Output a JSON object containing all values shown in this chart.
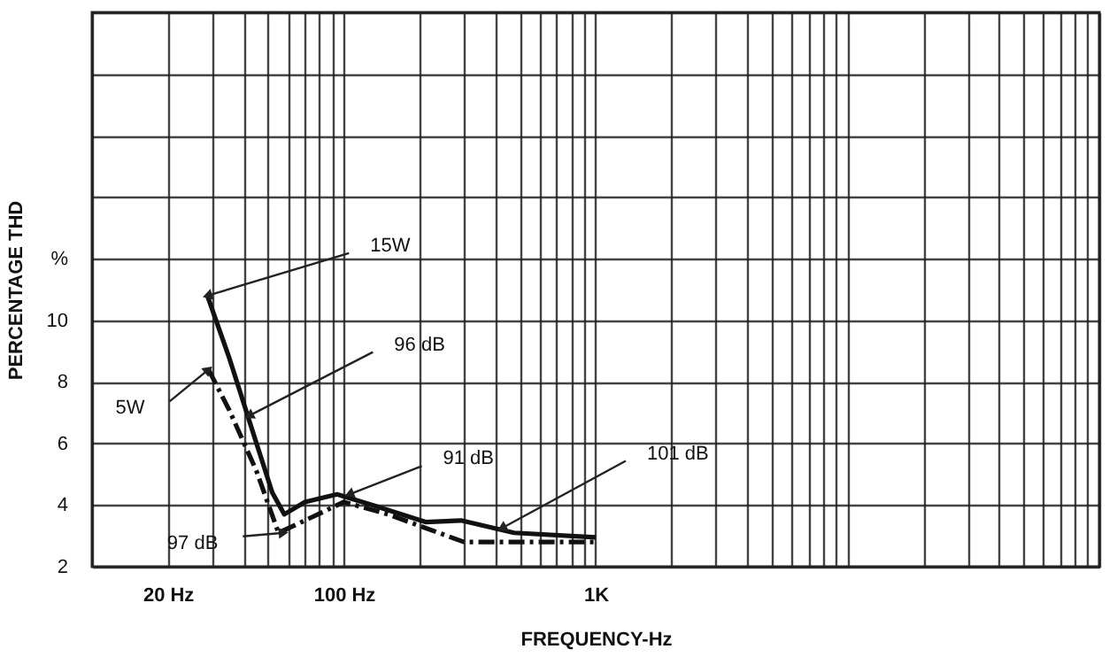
{
  "chart_data": {
    "type": "line",
    "xlabel": "FREQUENCY-Hz",
    "ylabel": "PERCENTAGE THD",
    "log": "x",
    "grid": true,
    "marker": "none",
    "xlim": [
      10,
      100000
    ],
    "ylim": [
      2,
      20
    ],
    "xticks": [
      {
        "value": 10,
        "label": null
      },
      {
        "value": 20,
        "label": "20 Hz"
      },
      {
        "value": 30,
        "label": null
      },
      {
        "value": 40,
        "label": null
      },
      {
        "value": 50,
        "label": null
      },
      {
        "value": 60,
        "label": null
      },
      {
        "value": 70,
        "label": null
      },
      {
        "value": 80,
        "label": null
      },
      {
        "value": 90,
        "label": null
      },
      {
        "value": 100,
        "label": "100 Hz"
      },
      {
        "value": 200,
        "label": null
      },
      {
        "value": 300,
        "label": null
      },
      {
        "value": 400,
        "label": null
      },
      {
        "value": 500,
        "label": null
      },
      {
        "value": 600,
        "label": null
      },
      {
        "value": 700,
        "label": null
      },
      {
        "value": 800,
        "label": null
      },
      {
        "value": 900,
        "label": null
      },
      {
        "value": 1000,
        "label": "1K"
      },
      {
        "value": 2000,
        "label": null
      },
      {
        "value": 3000,
        "label": null
      },
      {
        "value": 4000,
        "label": null
      },
      {
        "value": 5000,
        "label": null
      },
      {
        "value": 6000,
        "label": null
      },
      {
        "value": 7000,
        "label": null
      },
      {
        "value": 8000,
        "label": null
      },
      {
        "value": 9000,
        "label": null
      },
      {
        "value": 10000,
        "label": null
      },
      {
        "value": 20000,
        "label": null
      },
      {
        "value": 30000,
        "label": null
      },
      {
        "value": 40000,
        "label": null
      },
      {
        "value": 50000,
        "label": null
      },
      {
        "value": 60000,
        "label": null
      },
      {
        "value": 70000,
        "label": null
      },
      {
        "value": 80000,
        "label": null
      },
      {
        "value": 90000,
        "label": null
      },
      {
        "value": 100000,
        "label": null
      }
    ],
    "yticks": [
      2,
      4,
      6,
      8,
      10,
      {
        "value": 12,
        "label": "%"
      },
      {
        "value": 14,
        "label": null
      },
      {
        "value": 16,
        "label": null
      },
      {
        "value": 18,
        "label": null
      },
      {
        "value": 20,
        "label": null
      }
    ],
    "series": [
      {
        "name": "15W",
        "color": "#111111",
        "line_style": "solid",
        "x": [
          28.7,
          35,
          45,
          52,
          58,
          70,
          94,
          130,
          211,
          292,
          474,
          1000
        ],
        "values": [
          10.8,
          8.8,
          6.0,
          4.4,
          3.7,
          4.1,
          4.35,
          4.0,
          3.45,
          3.5,
          3.1,
          2.95
        ]
      },
      {
        "name": "5W",
        "color": "#111111",
        "line_style": "dashed",
        "x": [
          29,
          35,
          45,
          55,
          70,
          100,
          150,
          300,
          500,
          1000
        ],
        "values": [
          8.4,
          7.1,
          5.1,
          3.1,
          3.5,
          4.1,
          3.7,
          2.8,
          2.8,
          2.8
        ]
      }
    ],
    "annotations": [
      {
        "text": "96 dB",
        "x": 42,
        "y": 6.9
      },
      {
        "text": "91 dB",
        "x": 105,
        "y": 4.35
      },
      {
        "text": "97 dB",
        "x": 57.6,
        "y": 3.1
      },
      {
        "text": "101 dB",
        "x": 424,
        "y": 3.25
      }
    ]
  }
}
